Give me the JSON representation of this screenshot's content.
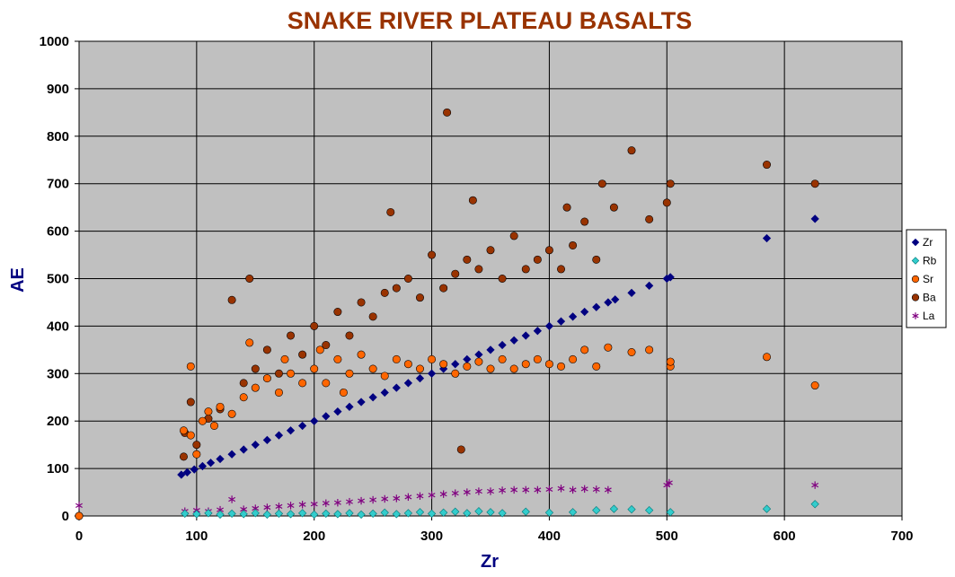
{
  "chart_data": {
    "type": "scatter",
    "title": "SNAKE RIVER PLATEAU BASALTS",
    "xlabel": "Zr",
    "ylabel": "AE",
    "xlim": [
      0,
      700
    ],
    "ylim": [
      0,
      1000
    ],
    "x_ticks": [
      "0",
      "100",
      "200",
      "300",
      "400",
      "500",
      "600",
      "700"
    ],
    "y_ticks": [
      "0",
      "100",
      "200",
      "300",
      "400",
      "500",
      "600",
      "700",
      "800",
      "900",
      "1000"
    ],
    "grid": true,
    "legend_position": "right",
    "plot_background": "#c0c0c0",
    "title_color": "#993300",
    "axis_title_color": "#000080",
    "series": [
      {
        "name": "Zr",
        "marker": "diamond",
        "color": "#000080",
        "points": [
          [
            87,
            87
          ],
          [
            92,
            92
          ],
          [
            98,
            98
          ],
          [
            105,
            105
          ],
          [
            112,
            112
          ],
          [
            120,
            120
          ],
          [
            130,
            130
          ],
          [
            140,
            140
          ],
          [
            150,
            150
          ],
          [
            160,
            160
          ],
          [
            170,
            170
          ],
          [
            180,
            180
          ],
          [
            190,
            190
          ],
          [
            200,
            200
          ],
          [
            210,
            210
          ],
          [
            220,
            220
          ],
          [
            230,
            230
          ],
          [
            240,
            240
          ],
          [
            250,
            250
          ],
          [
            260,
            260
          ],
          [
            270,
            270
          ],
          [
            280,
            280
          ],
          [
            290,
            290
          ],
          [
            300,
            300
          ],
          [
            310,
            310
          ],
          [
            320,
            320
          ],
          [
            330,
            330
          ],
          [
            340,
            340
          ],
          [
            350,
            350
          ],
          [
            360,
            360
          ],
          [
            370,
            370
          ],
          [
            380,
            380
          ],
          [
            390,
            390
          ],
          [
            400,
            400
          ],
          [
            410,
            410
          ],
          [
            420,
            420
          ],
          [
            430,
            430
          ],
          [
            440,
            440
          ],
          [
            450,
            450
          ],
          [
            456,
            456
          ],
          [
            470,
            470
          ],
          [
            485,
            485
          ],
          [
            500,
            500
          ],
          [
            503,
            503
          ],
          [
            585,
            585
          ],
          [
            626,
            626
          ]
        ]
      },
      {
        "name": "Rb",
        "marker": "diamond",
        "color": "#33cccc",
        "points": [
          [
            90,
            5
          ],
          [
            100,
            4
          ],
          [
            110,
            6
          ],
          [
            120,
            3
          ],
          [
            130,
            5
          ],
          [
            140,
            4
          ],
          [
            150,
            6
          ],
          [
            160,
            3
          ],
          [
            170,
            5
          ],
          [
            180,
            4
          ],
          [
            190,
            6
          ],
          [
            200,
            3
          ],
          [
            210,
            5
          ],
          [
            220,
            4
          ],
          [
            230,
            6
          ],
          [
            240,
            3
          ],
          [
            250,
            5
          ],
          [
            260,
            7
          ],
          [
            270,
            4
          ],
          [
            280,
            6
          ],
          [
            290,
            8
          ],
          [
            300,
            5
          ],
          [
            310,
            7
          ],
          [
            320,
            9
          ],
          [
            330,
            6
          ],
          [
            340,
            10
          ],
          [
            350,
            8
          ],
          [
            360,
            6
          ],
          [
            380,
            9
          ],
          [
            400,
            7
          ],
          [
            420,
            8
          ],
          [
            440,
            12
          ],
          [
            455,
            15
          ],
          [
            470,
            14
          ],
          [
            485,
            12
          ],
          [
            503,
            8
          ],
          [
            585,
            15
          ],
          [
            626,
            25
          ]
        ]
      },
      {
        "name": "Sr",
        "marker": "circle",
        "color": "#ff6600",
        "points": [
          [
            0,
            0
          ],
          [
            89,
            180
          ],
          [
            95,
            170
          ],
          [
            95,
            315
          ],
          [
            100,
            130
          ],
          [
            105,
            200
          ],
          [
            110,
            220
          ],
          [
            115,
            190
          ],
          [
            120,
            230
          ],
          [
            130,
            215
          ],
          [
            140,
            250
          ],
          [
            145,
            365
          ],
          [
            150,
            270
          ],
          [
            160,
            290
          ],
          [
            170,
            260
          ],
          [
            175,
            330
          ],
          [
            180,
            300
          ],
          [
            190,
            280
          ],
          [
            200,
            310
          ],
          [
            205,
            350
          ],
          [
            210,
            280
          ],
          [
            220,
            330
          ],
          [
            225,
            260
          ],
          [
            230,
            300
          ],
          [
            240,
            340
          ],
          [
            250,
            310
          ],
          [
            260,
            295
          ],
          [
            270,
            330
          ],
          [
            280,
            320
          ],
          [
            290,
            310
          ],
          [
            300,
            330
          ],
          [
            310,
            320
          ],
          [
            320,
            300
          ],
          [
            330,
            315
          ],
          [
            340,
            325
          ],
          [
            350,
            310
          ],
          [
            360,
            330
          ],
          [
            370,
            310
          ],
          [
            380,
            320
          ],
          [
            390,
            330
          ],
          [
            400,
            320
          ],
          [
            410,
            315
          ],
          [
            420,
            330
          ],
          [
            430,
            350
          ],
          [
            440,
            315
          ],
          [
            450,
            355
          ],
          [
            470,
            345
          ],
          [
            485,
            350
          ],
          [
            503,
            315
          ],
          [
            503,
            325
          ],
          [
            585,
            335
          ],
          [
            626,
            275
          ]
        ]
      },
      {
        "name": "Ba",
        "marker": "circle",
        "color": "#993300",
        "points": [
          [
            0,
            0
          ],
          [
            89,
            125
          ],
          [
            90,
            175
          ],
          [
            95,
            240
          ],
          [
            100,
            150
          ],
          [
            110,
            205
          ],
          [
            120,
            225
          ],
          [
            130,
            455
          ],
          [
            140,
            280
          ],
          [
            145,
            500
          ],
          [
            150,
            310
          ],
          [
            160,
            350
          ],
          [
            170,
            300
          ],
          [
            180,
            380
          ],
          [
            190,
            340
          ],
          [
            200,
            400
          ],
          [
            210,
            360
          ],
          [
            220,
            430
          ],
          [
            230,
            380
          ],
          [
            240,
            450
          ],
          [
            250,
            420
          ],
          [
            260,
            470
          ],
          [
            265,
            640
          ],
          [
            270,
            480
          ],
          [
            280,
            500
          ],
          [
            290,
            460
          ],
          [
            300,
            550
          ],
          [
            310,
            480
          ],
          [
            313,
            850
          ],
          [
            320,
            510
          ],
          [
            325,
            140
          ],
          [
            330,
            540
          ],
          [
            335,
            665
          ],
          [
            340,
            520
          ],
          [
            350,
            560
          ],
          [
            360,
            500
          ],
          [
            370,
            590
          ],
          [
            380,
            520
          ],
          [
            390,
            540
          ],
          [
            400,
            560
          ],
          [
            410,
            520
          ],
          [
            415,
            650
          ],
          [
            420,
            570
          ],
          [
            430,
            620
          ],
          [
            440,
            540
          ],
          [
            445,
            700
          ],
          [
            455,
            650
          ],
          [
            470,
            770
          ],
          [
            485,
            625
          ],
          [
            500,
            660
          ],
          [
            503,
            700
          ],
          [
            585,
            740
          ],
          [
            626,
            700
          ]
        ]
      },
      {
        "name": "La",
        "marker": "star",
        "color": "#800080",
        "points": [
          [
            0,
            22
          ],
          [
            90,
            10
          ],
          [
            100,
            12
          ],
          [
            110,
            10
          ],
          [
            120,
            13
          ],
          [
            130,
            35
          ],
          [
            140,
            14
          ],
          [
            150,
            16
          ],
          [
            160,
            18
          ],
          [
            170,
            20
          ],
          [
            180,
            22
          ],
          [
            190,
            24
          ],
          [
            200,
            25
          ],
          [
            210,
            27
          ],
          [
            220,
            28
          ],
          [
            230,
            30
          ],
          [
            240,
            32
          ],
          [
            250,
            34
          ],
          [
            260,
            36
          ],
          [
            270,
            37
          ],
          [
            280,
            40
          ],
          [
            290,
            42
          ],
          [
            300,
            44
          ],
          [
            310,
            46
          ],
          [
            320,
            48
          ],
          [
            330,
            50
          ],
          [
            340,
            52
          ],
          [
            350,
            52
          ],
          [
            360,
            54
          ],
          [
            370,
            55
          ],
          [
            380,
            55
          ],
          [
            390,
            55
          ],
          [
            400,
            56
          ],
          [
            410,
            58
          ],
          [
            420,
            55
          ],
          [
            430,
            57
          ],
          [
            440,
            56
          ],
          [
            450,
            55
          ],
          [
            500,
            65
          ],
          [
            502,
            70
          ],
          [
            626,
            65
          ]
        ]
      }
    ]
  }
}
